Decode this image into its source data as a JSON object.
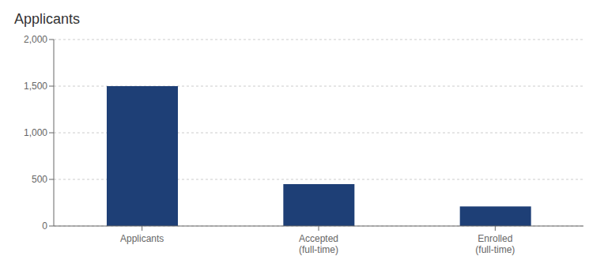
{
  "chart_data": {
    "type": "bar",
    "title": "Applicants",
    "categories": [
      "Applicants",
      "Accepted\n(full-time)",
      "Enrolled\n(full-time)"
    ],
    "values": [
      1500,
      450,
      210
    ],
    "color": "#1e3f76",
    "ylim": [
      0,
      2000
    ],
    "yticks": [
      0,
      500,
      {
        "value": 1000,
        "label": "1,000"
      },
      {
        "value": 1500,
        "label": "1,500"
      },
      {
        "value": 2000,
        "label": "2,000"
      }
    ],
    "grid": true
  }
}
